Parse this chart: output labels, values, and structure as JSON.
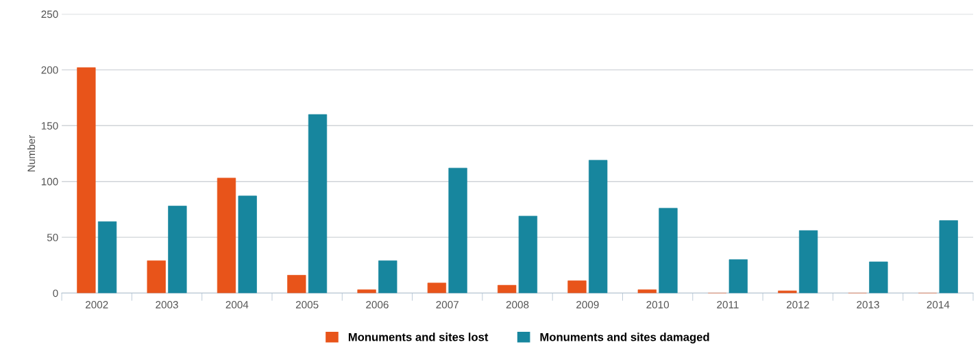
{
  "chart_data": {
    "type": "bar",
    "ylabel": "Number",
    "categories": [
      "2002",
      "2003",
      "2004",
      "2005",
      "2006",
      "2007",
      "2008",
      "2009",
      "2010",
      "2011",
      "2012",
      "2013",
      "2014"
    ],
    "series": [
      {
        "name": "Monuments and sites lost",
        "color": "#e8541a",
        "values": [
          202,
          29,
          103,
          16,
          3,
          9,
          7,
          11,
          3,
          0,
          2,
          0,
          0
        ]
      },
      {
        "name": "Monuments and sites damaged",
        "color": "#17869e",
        "values": [
          64,
          78,
          87,
          160,
          29,
          112,
          69,
          119,
          76,
          30,
          56,
          28,
          65
        ]
      }
    ],
    "ylim": [
      0,
      250
    ],
    "yticks": [
      0,
      50,
      100,
      150,
      200,
      250
    ],
    "grid": "y",
    "legend": "bottom"
  }
}
